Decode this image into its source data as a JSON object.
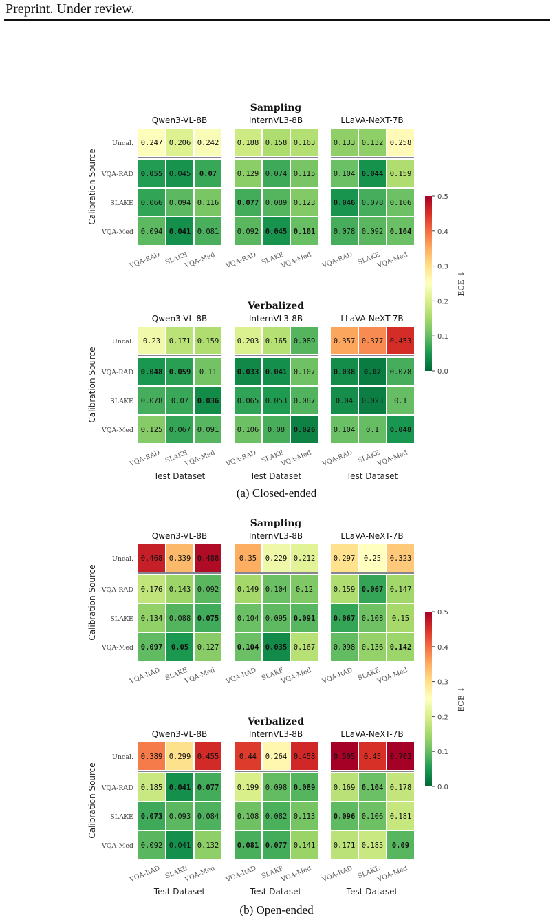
{
  "header": {
    "text": "Preprint. Under review."
  },
  "captions": {
    "a": "(a) Closed-ended",
    "b": "(b) Open-ended"
  },
  "colorbar": {
    "label": "ECE ↓",
    "ticks": [
      "0.0",
      "0.1",
      "0.2",
      "0.3",
      "0.4",
      "0.5"
    ],
    "range": [
      0,
      0.5
    ],
    "colormap": "RdYlGn_r",
    "colors": [
      "#006837",
      "#1a9850",
      "#66bd63",
      "#a6d96a",
      "#d9ef8b",
      "#ffffbf",
      "#fee08b",
      "#fdae61",
      "#f46d43",
      "#d73027",
      "#a50026"
    ]
  },
  "chart_data": [
    {
      "type": "heatmap",
      "figure": "a",
      "title": "Sampling",
      "ylabel": "Calibration Source",
      "xlabel": "",
      "rows": [
        "Uncal.",
        "VQA-RAD",
        "SLAKE",
        "VQA-Med"
      ],
      "columns": [
        "VQA-RAD",
        "SLAKE",
        "VQA-Med"
      ],
      "panels": [
        {
          "model": "Qwen3-VL-8B",
          "values": [
            [
              0.247,
              0.206,
              0.242
            ],
            [
              0.055,
              0.045,
              0.07
            ],
            [
              0.066,
              0.094,
              0.116
            ],
            [
              0.094,
              0.041,
              0.081
            ]
          ],
          "bold": [
            [
              1,
              0
            ],
            [
              1,
              2
            ],
            [
              3,
              1
            ]
          ]
        },
        {
          "model": "InternVL3-8B",
          "values": [
            [
              0.188,
              0.158,
              0.163
            ],
            [
              0.129,
              0.074,
              0.115
            ],
            [
              0.077,
              0.089,
              0.123
            ],
            [
              0.092,
              0.045,
              0.101
            ]
          ],
          "bold": [
            [
              2,
              0
            ],
            [
              3,
              1
            ],
            [
              3,
              2
            ]
          ]
        },
        {
          "model": "LLaVA-NeXT-7B",
          "values": [
            [
              0.133,
              0.132,
              0.258
            ],
            [
              0.104,
              0.044,
              0.159
            ],
            [
              0.046,
              0.078,
              0.106
            ],
            [
              0.078,
              0.092,
              0.104
            ]
          ],
          "bold": [
            [
              1,
              1
            ],
            [
              2,
              0
            ],
            [
              3,
              2
            ]
          ]
        }
      ]
    },
    {
      "type": "heatmap",
      "figure": "a",
      "title": "Verbalized",
      "ylabel": "Calibration Source",
      "xlabel": "Test Dataset",
      "rows": [
        "Uncal.",
        "VQA-RAD",
        "SLAKE",
        "VQA-Med"
      ],
      "columns": [
        "VQA-RAD",
        "SLAKE",
        "VQA-Med"
      ],
      "panels": [
        {
          "model": "Qwen3-VL-8B",
          "values": [
            [
              0.23,
              0.171,
              0.159
            ],
            [
              0.048,
              0.059,
              0.11
            ],
            [
              0.078,
              0.07,
              0.036
            ],
            [
              0.125,
              0.067,
              0.091
            ]
          ],
          "bold": [
            [
              1,
              0
            ],
            [
              1,
              1
            ],
            [
              2,
              2
            ]
          ]
        },
        {
          "model": "InternVL3-8B",
          "values": [
            [
              0.203,
              0.165,
              0.089
            ],
            [
              0.033,
              0.041,
              0.107
            ],
            [
              0.065,
              0.053,
              0.087
            ],
            [
              0.106,
              0.08,
              0.026
            ]
          ],
          "bold": [
            [
              1,
              0
            ],
            [
              1,
              1
            ],
            [
              3,
              2
            ]
          ]
        },
        {
          "model": "LLaVA-NeXT-7B",
          "values": [
            [
              0.357,
              0.377,
              0.453
            ],
            [
              0.038,
              0.02,
              0.078
            ],
            [
              0.04,
              0.023,
              0.1
            ],
            [
              0.104,
              0.1,
              0.048
            ]
          ],
          "bold": [
            [
              1,
              0
            ],
            [
              1,
              1
            ],
            [
              3,
              2
            ]
          ]
        }
      ]
    },
    {
      "type": "heatmap",
      "figure": "b",
      "title": "Sampling",
      "ylabel": "Calibration Source",
      "xlabel": "",
      "rows": [
        "Uncal.",
        "VQA-RAD",
        "SLAKE",
        "VQA-Med"
      ],
      "columns": [
        "VQA-RAD",
        "SLAKE",
        "VQA-Med"
      ],
      "panels": [
        {
          "model": "Qwen3-VL-8B",
          "values": [
            [
              0.468,
              0.339,
              0.488
            ],
            [
              0.176,
              0.143,
              0.092
            ],
            [
              0.134,
              0.088,
              0.075
            ],
            [
              0.097,
              0.05,
              0.127
            ]
          ],
          "bold": [
            [
              2,
              2
            ],
            [
              3,
              0
            ],
            [
              3,
              1
            ]
          ]
        },
        {
          "model": "InternVL3-8B",
          "values": [
            [
              0.35,
              0.229,
              0.212
            ],
            [
              0.149,
              0.104,
              0.12
            ],
            [
              0.104,
              0.095,
              0.091
            ],
            [
              0.104,
              0.035,
              0.167
            ]
          ],
          "bold": [
            [
              2,
              2
            ],
            [
              3,
              0
            ],
            [
              3,
              1
            ]
          ]
        },
        {
          "model": "LLaVA-NeXT-7B",
          "values": [
            [
              0.297,
              0.25,
              0.323
            ],
            [
              0.159,
              0.067,
              0.147
            ],
            [
              0.067,
              0.108,
              0.15
            ],
            [
              0.098,
              0.136,
              0.142
            ]
          ],
          "bold": [
            [
              1,
              1
            ],
            [
              2,
              0
            ],
            [
              3,
              2
            ]
          ]
        }
      ]
    },
    {
      "type": "heatmap",
      "figure": "b",
      "title": "Verbalized",
      "ylabel": "Calibration Source",
      "xlabel": "Test Dataset",
      "rows": [
        "Uncal.",
        "VQA-RAD",
        "SLAKE",
        "VQA-Med"
      ],
      "columns": [
        "VQA-RAD",
        "SLAKE",
        "VQA-Med"
      ],
      "panels": [
        {
          "model": "Qwen3-VL-8B",
          "values": [
            [
              0.389,
              0.299,
              0.455
            ],
            [
              0.185,
              0.041,
              0.077
            ],
            [
              0.073,
              0.093,
              0.084
            ],
            [
              0.092,
              0.041,
              0.132
            ]
          ],
          "bold": [
            [
              1,
              1
            ],
            [
              1,
              2
            ],
            [
              2,
              0
            ]
          ]
        },
        {
          "model": "InternVL3-8B",
          "values": [
            [
              0.44,
              0.264,
              0.458
            ],
            [
              0.199,
              0.098,
              0.089
            ],
            [
              0.108,
              0.082,
              0.113
            ],
            [
              0.081,
              0.077,
              0.141
            ]
          ],
          "bold": [
            [
              1,
              2
            ],
            [
              3,
              0
            ],
            [
              3,
              1
            ]
          ]
        },
        {
          "model": "LLaVA-NeXT-7B",
          "values": [
            [
              0.505,
              0.45,
              0.703
            ],
            [
              0.169,
              0.104,
              0.178
            ],
            [
              0.096,
              0.106,
              0.181
            ],
            [
              0.171,
              0.185,
              0.09
            ]
          ],
          "bold": [
            [
              1,
              1
            ],
            [
              2,
              0
            ],
            [
              3,
              2
            ]
          ]
        }
      ]
    }
  ]
}
